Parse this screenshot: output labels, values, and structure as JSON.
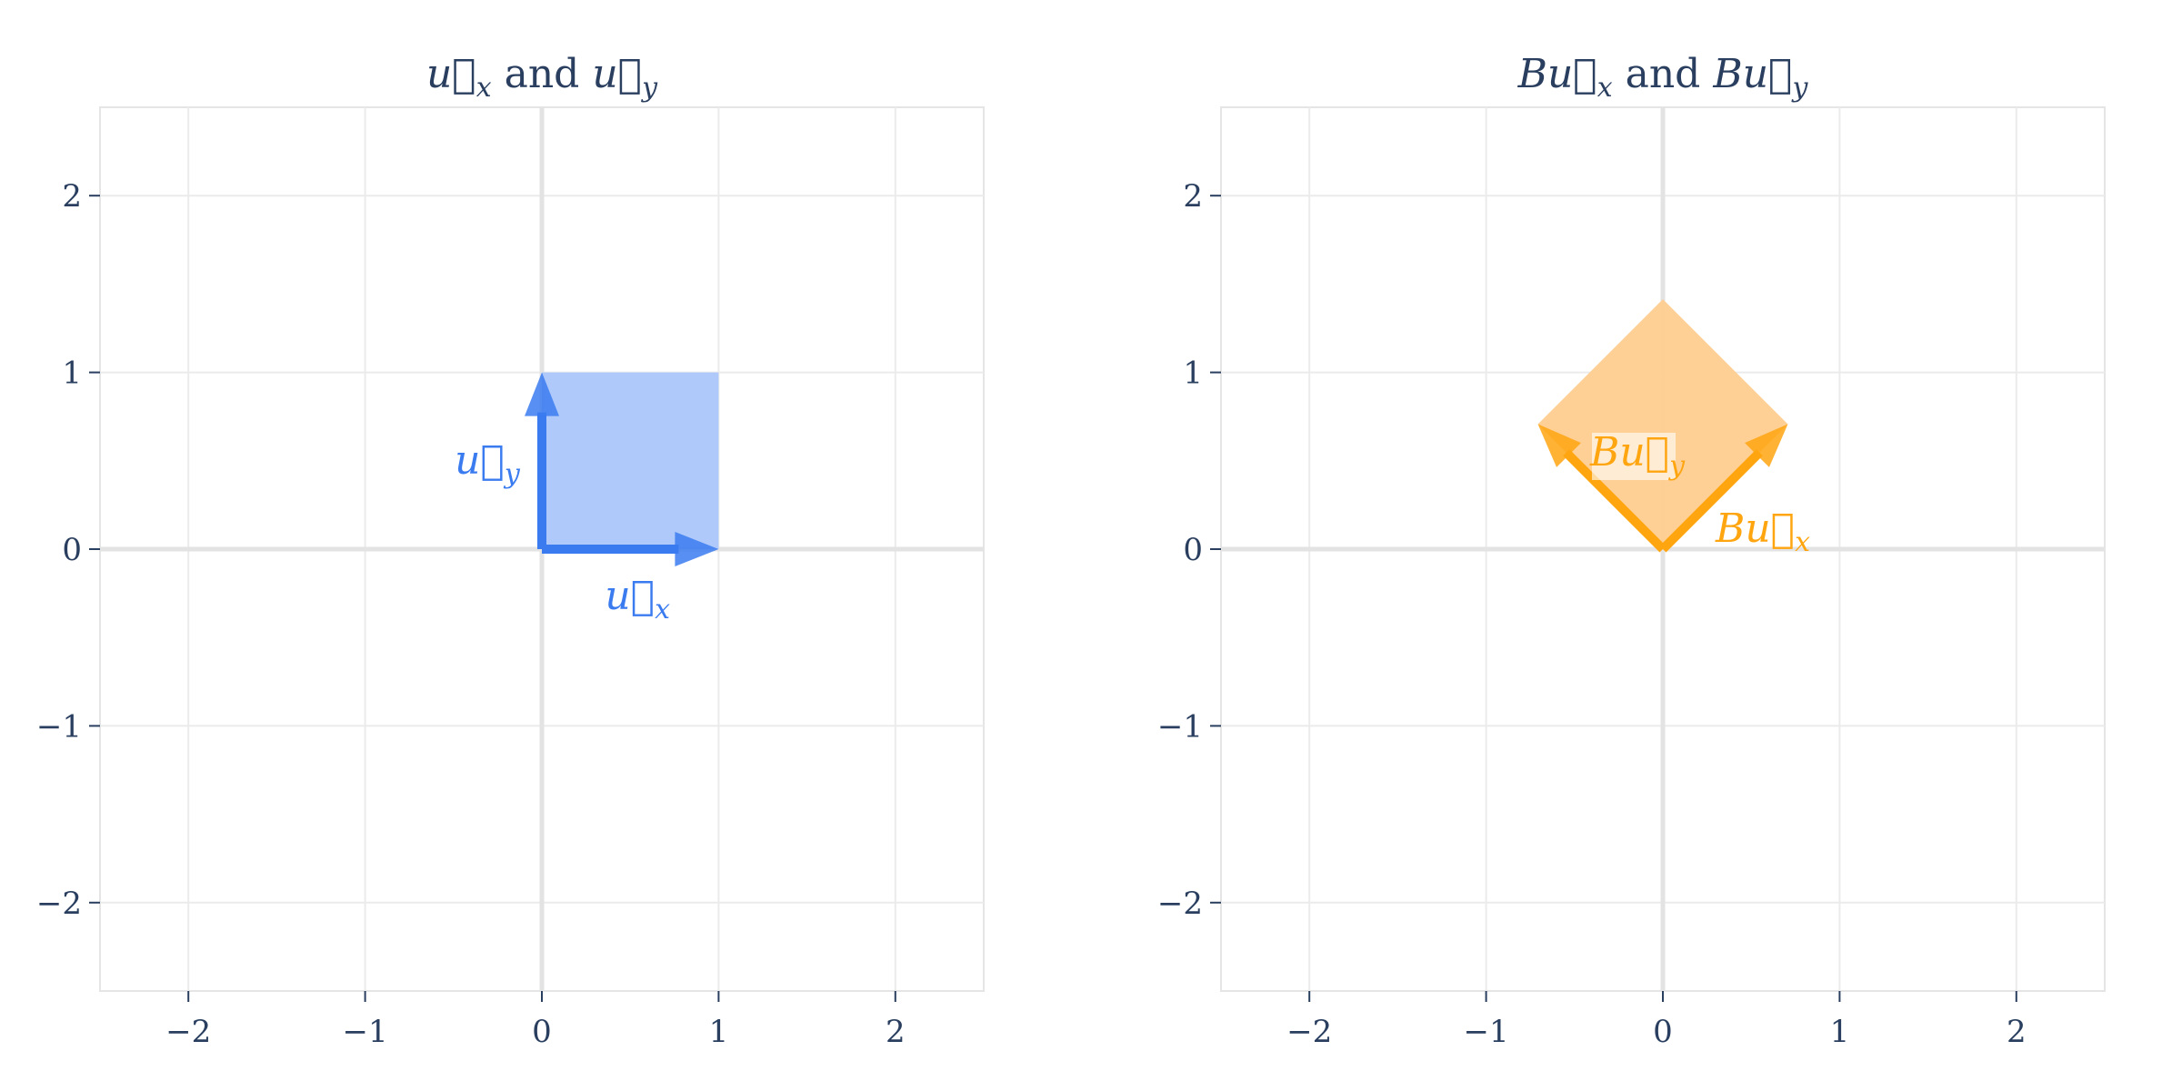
{
  "chart_data": [
    {
      "type": "vector",
      "title": {
        "a": "u",
        "a_sub": "x",
        "join": " and ",
        "b": "u",
        "b_sub": "y"
      },
      "xlim": [
        -2.5,
        2.5
      ],
      "ylim": [
        -2.5,
        2.5
      ],
      "xticks": [
        -2,
        -1,
        0,
        1,
        2
      ],
      "yticks": [
        -2,
        -1,
        0,
        1,
        2
      ],
      "xtick_labels": [
        "−2",
        "−1",
        "0",
        "1",
        "2"
      ],
      "ytick_labels": [
        "−2",
        "−1",
        "0",
        "1",
        "2"
      ],
      "grid": true,
      "color": "#3b7bf0",
      "fill_color": "#aac6fa",
      "polygon": [
        [
          0,
          0
        ],
        [
          1,
          0
        ],
        [
          1,
          1
        ],
        [
          0,
          1
        ]
      ],
      "vectors": [
        {
          "x": 1,
          "y": 0,
          "label_prefix": "",
          "label_base": "u",
          "label_sub": "x"
        },
        {
          "x": 0,
          "y": 1,
          "label_prefix": "",
          "label_base": "u",
          "label_sub": "y"
        }
      ]
    },
    {
      "type": "vector",
      "title": {
        "prefix": "B",
        "a": "u",
        "a_sub": "x",
        "join": " and ",
        "b": "u",
        "b_sub": "y"
      },
      "xlim": [
        -2.5,
        2.5
      ],
      "ylim": [
        -2.5,
        2.5
      ],
      "xticks": [
        -2,
        -1,
        0,
        1,
        2
      ],
      "yticks": [
        -2,
        -1,
        0,
        1,
        2
      ],
      "xtick_labels": [
        "−2",
        "−1",
        "0",
        "1",
        "2"
      ],
      "ytick_labels": [
        "−2",
        "−1",
        "0",
        "1",
        "2"
      ],
      "grid": true,
      "color": "#ffa510",
      "fill_color": "#ffcd8f",
      "polygon": [
        [
          0,
          0
        ],
        [
          0.707,
          0.707
        ],
        [
          0,
          1.414
        ],
        [
          -0.707,
          0.707
        ]
      ],
      "vectors": [
        {
          "x": 0.707,
          "y": 0.707,
          "label_prefix": "B",
          "label_base": "u",
          "label_sub": "x"
        },
        {
          "x": -0.707,
          "y": 0.707,
          "label_prefix": "B",
          "label_base": "u",
          "label_sub": "y"
        }
      ]
    }
  ]
}
